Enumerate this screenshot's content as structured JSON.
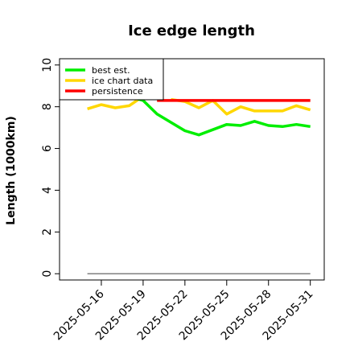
{
  "chart_data": {
    "type": "line",
    "title": "Ice edge length",
    "xlabel": "",
    "ylabel": "Length (1000km)",
    "x": [
      "2025-05-15",
      "2025-05-16",
      "2025-05-17",
      "2025-05-18",
      "2025-05-19",
      "2025-05-20",
      "2025-05-21",
      "2025-05-22",
      "2025-05-23",
      "2025-05-24",
      "2025-05-25",
      "2025-05-26",
      "2025-05-27",
      "2025-05-28",
      "2025-05-29",
      "2025-05-30",
      "2025-05-31"
    ],
    "xticks": [
      "2025-05-16",
      "2025-05-19",
      "2025-05-22",
      "2025-05-25",
      "2025-05-28",
      "2025-05-31"
    ],
    "xlim": [
      "2025-05-13",
      "2025-06-01"
    ],
    "ylim": [
      -0.3,
      10.3
    ],
    "yticks": [
      0,
      2,
      4,
      6,
      8,
      10
    ],
    "grid": false,
    "legend_position": "top-left",
    "series": [
      {
        "name": "best est.",
        "color": "#00ee00",
        "values": [
          null,
          null,
          null,
          8.5,
          8.3,
          7.65,
          7.25,
          6.85,
          6.65,
          6.9,
          7.15,
          7.1,
          7.3,
          7.1,
          7.05,
          7.15,
          7.05
        ]
      },
      {
        "name": "ice chart data",
        "color": "#ffd700",
        "values": [
          7.9,
          8.1,
          7.95,
          8.05,
          8.5,
          null,
          8.35,
          8.25,
          7.95,
          8.3,
          7.65,
          8.0,
          7.8,
          7.8,
          7.8,
          8.05,
          7.85
        ]
      },
      {
        "name": "persistence",
        "color": "#ff0000",
        "values": [
          null,
          null,
          null,
          null,
          null,
          8.3,
          8.3,
          8.3,
          8.3,
          8.3,
          8.3,
          8.3,
          8.3,
          8.3,
          8.3,
          8.3,
          8.3
        ]
      },
      {
        "name": "",
        "color": "#808080",
        "values": [
          0,
          0,
          0,
          0,
          0,
          0,
          0,
          0,
          0,
          0,
          0,
          0,
          0,
          0,
          0,
          0,
          0
        ]
      }
    ]
  }
}
